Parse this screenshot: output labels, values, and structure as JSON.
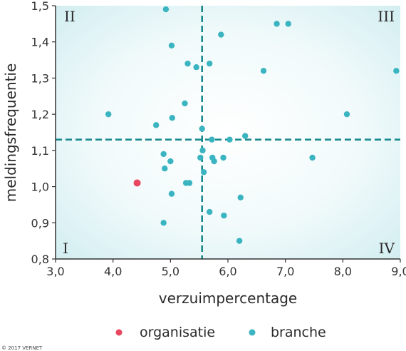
{
  "chart_data": {
    "type": "scatter",
    "xlabel": "verzuimpercentage",
    "ylabel": "meldingsfrequentie",
    "xlim": [
      3.0,
      9.0
    ],
    "ylim": [
      0.8,
      1.5
    ],
    "x_ticks": [
      "3,0",
      "4,0",
      "5,0",
      "6,0",
      "7,0",
      "8,0",
      "9,0"
    ],
    "y_ticks": [
      "0,8",
      "0,9",
      "1,0",
      "1,1",
      "1,2",
      "1,3",
      "1,4",
      "1,5"
    ],
    "x_tick_values": [
      3,
      4,
      5,
      6,
      7,
      8,
      9
    ],
    "y_tick_values": [
      0.8,
      0.9,
      1.0,
      1.1,
      1.2,
      1.3,
      1.4,
      1.5
    ],
    "reference_lines": {
      "x": 5.55,
      "y": 1.13
    },
    "quadrants": {
      "top_left": "II",
      "top_right": "III",
      "bottom_left": "I",
      "bottom_right": "IV"
    },
    "grid": false,
    "legend_position": "bottom",
    "series": [
      {
        "name": "organisatie",
        "color": "#e8475f",
        "points": [
          [
            4.42,
            1.01
          ]
        ]
      },
      {
        "name": "branche",
        "color": "#3bb4c1",
        "points": [
          [
            4.92,
            1.49
          ],
          [
            5.88,
            1.42
          ],
          [
            6.85,
            1.45
          ],
          [
            7.05,
            1.45
          ],
          [
            5.02,
            1.39
          ],
          [
            5.3,
            1.34
          ],
          [
            5.45,
            1.33
          ],
          [
            5.68,
            1.34
          ],
          [
            6.62,
            1.32
          ],
          [
            8.93,
            1.32
          ],
          [
            5.25,
            1.23
          ],
          [
            3.92,
            1.2
          ],
          [
            5.03,
            1.19
          ],
          [
            4.75,
            1.17
          ],
          [
            8.07,
            1.2
          ],
          [
            5.55,
            1.16
          ],
          [
            5.72,
            1.13
          ],
          [
            6.03,
            1.13
          ],
          [
            6.3,
            1.14
          ],
          [
            5.56,
            1.1
          ],
          [
            4.88,
            1.09
          ],
          [
            5.52,
            1.08
          ],
          [
            5.73,
            1.08
          ],
          [
            5.92,
            1.08
          ],
          [
            7.47,
            1.08
          ],
          [
            5.0,
            1.07
          ],
          [
            5.76,
            1.07
          ],
          [
            4.9,
            1.05
          ],
          [
            5.58,
            1.04
          ],
          [
            5.27,
            1.01
          ],
          [
            5.33,
            1.01
          ],
          [
            5.02,
            0.98
          ],
          [
            6.22,
            0.97
          ],
          [
            5.68,
            0.93
          ],
          [
            5.93,
            0.92
          ],
          [
            4.88,
            0.9
          ],
          [
            6.2,
            0.85
          ]
        ]
      }
    ]
  },
  "copyright": "© 2017 VERNET"
}
